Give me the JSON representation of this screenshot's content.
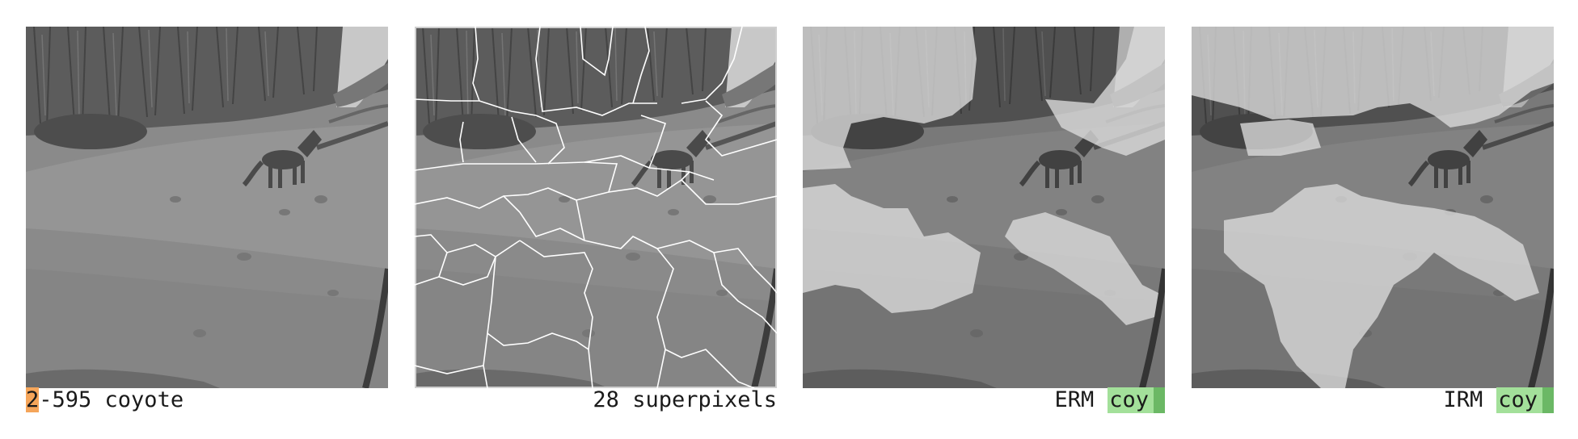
{
  "panels": {
    "original": {
      "caption_highlight": "2",
      "caption_rest": "-595 coyote"
    },
    "superpixels": {
      "caption": "28 superpixels"
    },
    "erm": {
      "method": "ERM",
      "prediction": "coy"
    },
    "irm": {
      "method": "IRM",
      "prediction": "coy"
    }
  },
  "colors": {
    "id_highlight": "#f5a55a",
    "prediction_fill": "#a3e09a",
    "prediction_bar": "#6bb865",
    "superpixel_border": "#ffffff"
  }
}
